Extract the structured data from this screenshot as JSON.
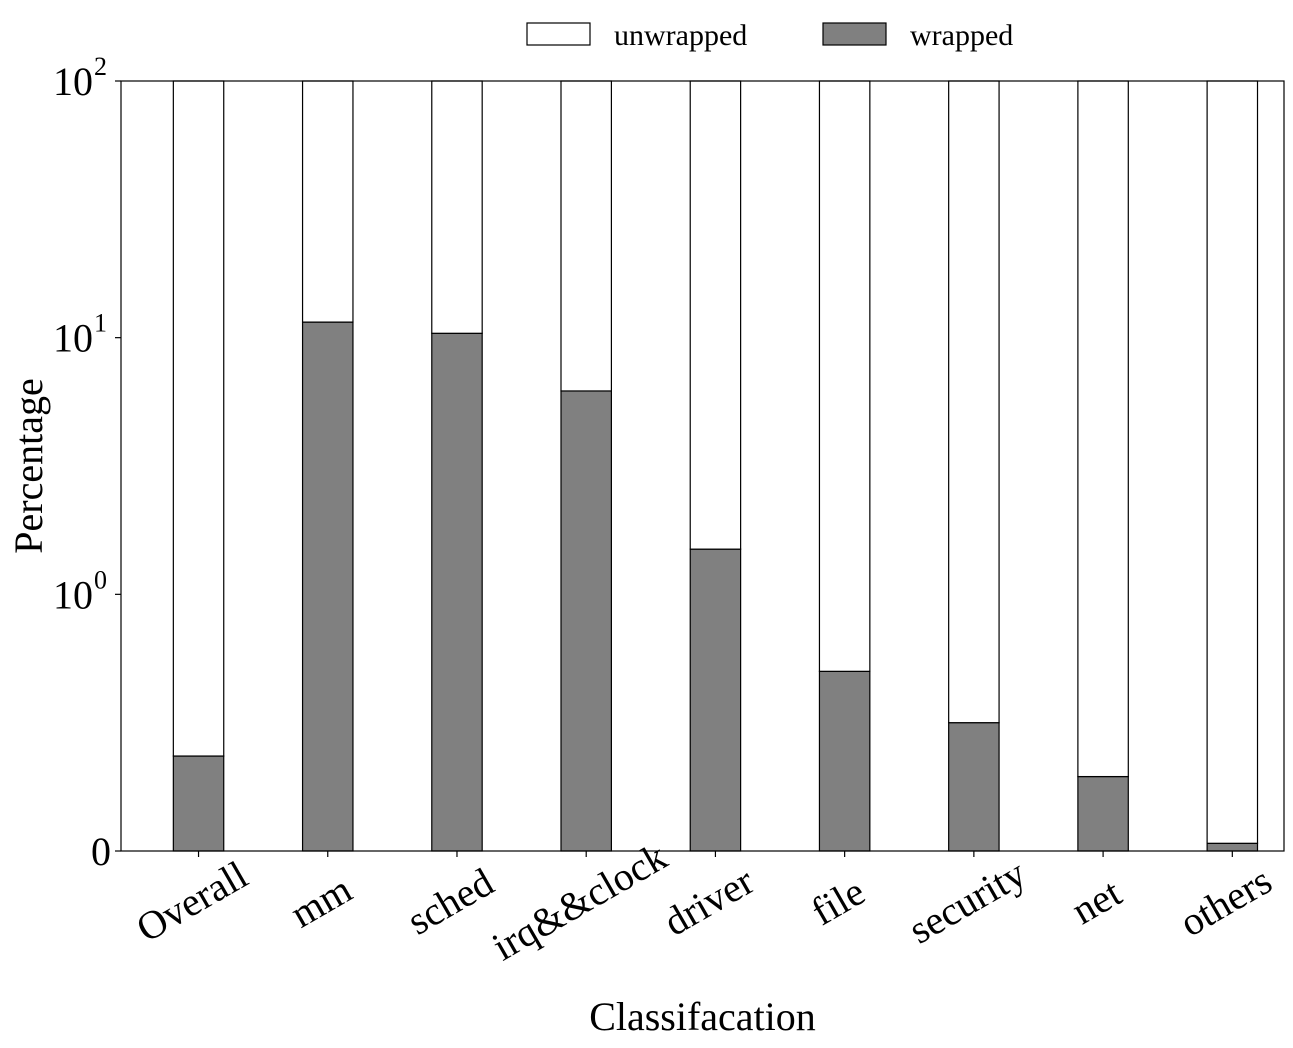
{
  "chart_data": {
    "type": "bar",
    "stacked": true,
    "y_scale": "symlog",
    "categories": [
      "Overall",
      "mm",
      "sched",
      "irq&&clock",
      "driver",
      "file",
      "security",
      "net",
      "others"
    ],
    "series": [
      {
        "name": "wrapped",
        "values": [
          0.37,
          11.5,
          10.4,
          6.2,
          1.5,
          0.7,
          0.5,
          0.29,
          0.03
        ],
        "color": "#808080"
      },
      {
        "name": "unwrapped",
        "values": [
          99.63,
          88.5,
          89.6,
          93.8,
          98.5,
          99.3,
          99.5,
          99.71,
          99.97
        ],
        "color": "#ffffff"
      }
    ],
    "xlabel": "Classifacation",
    "ylabel": "Percentage",
    "ylim": [
      0,
      100
    ],
    "yticks": [
      {
        "value": 0,
        "base": "0",
        "exp": ""
      },
      {
        "value": 1,
        "base": "10",
        "exp": "0"
      },
      {
        "value": 10,
        "base": "10",
        "exp": "1"
      },
      {
        "value": 100,
        "base": "10",
        "exp": "2"
      }
    ],
    "legend": {
      "position": "top-center",
      "entries": [
        {
          "label": "unwrapped",
          "color": "#ffffff"
        },
        {
          "label": "wrapped",
          "color": "#808080"
        }
      ]
    },
    "grid": false
  }
}
